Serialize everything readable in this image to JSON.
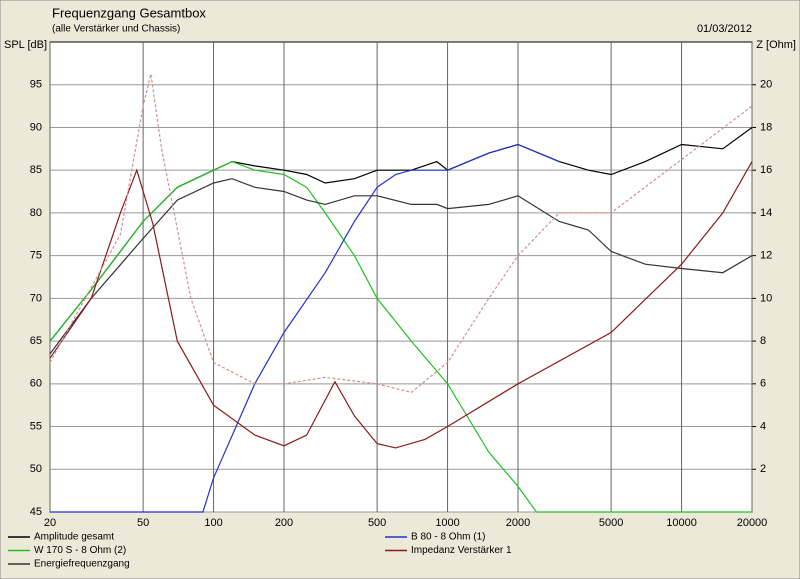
{
  "chart_data": {
    "type": "line",
    "title": "Frequenzgang Gesamtbox",
    "subtitle": "(alle Verstärker und Chassis)",
    "date": "01/03/2012",
    "ylabel": "SPL [dB]",
    "y2label": "Z [Ohm]",
    "xscale": "log",
    "grid": true,
    "xlim": [
      20,
      20000
    ],
    "xticks": [
      20,
      50,
      100,
      200,
      500,
      1000,
      2000,
      5000,
      10000,
      20000
    ],
    "ylim": [
      45,
      100
    ],
    "yticks": [
      45,
      50,
      55,
      60,
      65,
      70,
      75,
      80,
      85,
      90,
      95
    ],
    "y2lim": [
      0,
      22
    ],
    "y2ticks": [
      2,
      4,
      6,
      8,
      10,
      12,
      14,
      16,
      18,
      20
    ],
    "series": [
      {
        "name": "Amplitude gesamt",
        "color": "#000000",
        "x": [
          20,
          30,
          50,
          70,
          100,
          120,
          150,
          200,
          250,
          300,
          400,
          500,
          700,
          900,
          1000,
          1500,
          2000,
          3000,
          4000,
          5000,
          7000,
          10000,
          15000,
          20000
        ],
        "values": [
          65,
          71,
          79,
          83,
          85,
          86,
          85.5,
          85,
          84.5,
          83.5,
          84,
          85,
          85,
          86,
          85,
          87,
          88,
          86,
          85,
          84.5,
          86,
          88,
          87.5,
          90
        ]
      },
      {
        "name": "W 170 S - 8 Ohm (2)",
        "color": "#22c022",
        "x": [
          20,
          30,
          50,
          70,
          100,
          120,
          150,
          200,
          250,
          300,
          400,
          500,
          700,
          1000,
          1500,
          2000,
          2400,
          20000
        ],
        "values": [
          65,
          71,
          79,
          83,
          85,
          86,
          85,
          84.5,
          83,
          80,
          75,
          70,
          65,
          60,
          52,
          48,
          45,
          45
        ]
      },
      {
        "name": "Energiefrequenzgang",
        "color": "#333333",
        "x": [
          20,
          30,
          50,
          70,
          100,
          120,
          150,
          200,
          250,
          300,
          400,
          500,
          700,
          900,
          1000,
          1500,
          2000,
          3000,
          4000,
          5000,
          7000,
          10000,
          15000,
          20000
        ],
        "values": [
          63.5,
          70,
          77,
          81.5,
          83.5,
          84,
          83,
          82.5,
          81.5,
          81,
          82,
          82,
          81,
          81,
          80.5,
          81,
          82,
          79,
          78,
          75.5,
          74,
          73.5,
          73,
          75
        ]
      },
      {
        "name": "B 80 - 8 Ohm (1)",
        "color": "#2233cc",
        "x": [
          20,
          90,
          100,
          150,
          200,
          300,
          400,
          500,
          600,
          700,
          1000,
          1500,
          2000,
          3000
        ],
        "values": [
          45,
          45,
          49,
          60,
          66,
          73,
          79,
          83,
          84.5,
          85,
          85,
          87,
          88,
          86
        ]
      },
      {
        "name": "Impedanz Verstärker 1",
        "color": "#8b1a1a",
        "axis": "y2",
        "x": [
          20,
          30,
          40,
          47,
          55,
          70,
          100,
          150,
          200,
          250,
          330,
          400,
          500,
          600,
          800,
          1000,
          2000,
          5000,
          10000,
          15000,
          20000
        ],
        "values": [
          7.2,
          10,
          14,
          16,
          13.5,
          8,
          5,
          3.6,
          3.1,
          3.6,
          6.1,
          4.5,
          3.2,
          3,
          3.4,
          4,
          6,
          8.4,
          11.6,
          14,
          16.4
        ]
      },
      {
        "color": "#d09090",
        "axis": "y2",
        "dash": true,
        "x": [
          20,
          40,
          50,
          54,
          60,
          80,
          100,
          150,
          200,
          300,
          500,
          700,
          1000,
          1500,
          2000,
          3000,
          5000,
          10000,
          20000
        ],
        "values": [
          7,
          13,
          19,
          20.5,
          17,
          10,
          7,
          6,
          6,
          6.3,
          6,
          5.6,
          7,
          10,
          12,
          14,
          14,
          16.5,
          19
        ]
      }
    ]
  }
}
